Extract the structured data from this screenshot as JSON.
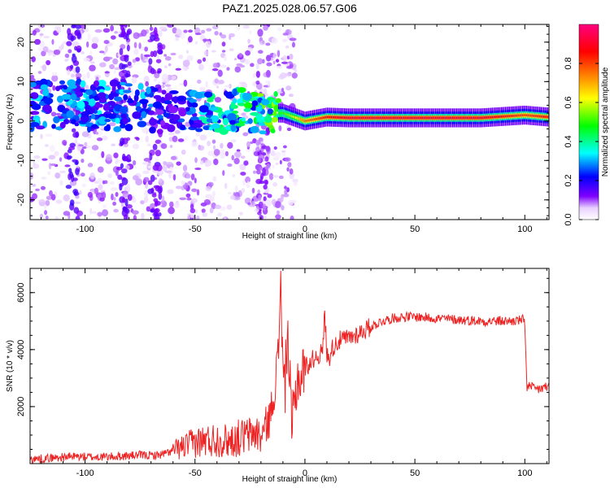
{
  "figure": {
    "title": "PAZ1.2025.028.06.57.G06"
  },
  "chart_data": [
    {
      "type": "heatmap",
      "title": "PAZ1.2025.028.06.57.G06",
      "xlabel": "Height of straight line (km)",
      "ylabel": "Frequency (Hz)",
      "xlim": [
        -125,
        111
      ],
      "ylim": [
        -25,
        24.5
      ],
      "xticks": [
        -100,
        -50,
        0,
        50,
        100
      ],
      "xticklabels": [
        "-100",
        "-50",
        "0",
        "50",
        "100"
      ],
      "yticks": [
        -20,
        -10,
        0,
        10,
        20
      ],
      "yticklabels": [
        "-20",
        "-10",
        "0",
        "10",
        "20"
      ],
      "grid": false,
      "colorbar": {
        "label": "Normalized spectral amplitude",
        "range": [
          0,
          1
        ],
        "ticks": [
          0.0,
          0.2,
          0.4,
          0.6,
          0.8
        ],
        "ticklabels": [
          "0.0",
          "0.2",
          "0.4",
          "0.6",
          "0.8"
        ],
        "colormap": [
          "#ffffff",
          "#7f00ff",
          "#0000ff",
          "#00ffff",
          "#00ff00",
          "#ffff00",
          "#ff8000",
          "#ff0000",
          "#ff00ff"
        ]
      },
      "ridge": {
        "x": [
          -125,
          -100,
          -75,
          -60,
          -50,
          -40,
          -30,
          -20,
          -10,
          -5,
          0,
          10,
          20,
          40,
          60,
          80,
          100,
          111
        ],
        "frequency_hz": [
          4,
          4,
          3.5,
          3,
          2.5,
          1.5,
          3,
          2,
          2,
          1,
          0,
          1,
          0.8,
          0.8,
          0.8,
          0.8,
          1.5,
          1
        ],
        "amplitude": [
          0.3,
          0.3,
          0.3,
          0.2,
          0.3,
          0.4,
          0.4,
          0.5,
          0.5,
          0.6,
          0.75,
          0.85,
          0.9,
          0.9,
          0.9,
          0.9,
          0.8,
          0.85
        ]
      },
      "noise_region_x": [
        -125,
        -65
      ],
      "cluster_region_x": [
        -65,
        -12
      ],
      "coherent_region_x": [
        -12,
        111
      ]
    },
    {
      "type": "line",
      "xlabel": "Height of straight line (km)",
      "ylabel": "SNR (10 * v/v)",
      "xlim": [
        -125,
        111
      ],
      "ylim": [
        0,
        6850
      ],
      "xticks": [
        -100,
        -50,
        0,
        50,
        100
      ],
      "xticklabels": [
        "-100",
        "-50",
        "0",
        "50",
        "100"
      ],
      "yticks": [
        2000,
        4000,
        6000
      ],
      "yticklabels": [
        "2000",
        "4000",
        "6000"
      ],
      "grid": false,
      "color": "#ee2222",
      "series": [
        {
          "x": [
            -125,
            -115,
            -105,
            -95,
            -85,
            -75,
            -70,
            -65,
            -60,
            -55,
            -50,
            -45,
            -40,
            -35,
            -30,
            -25,
            -22,
            -20,
            -18,
            -16,
            -14,
            -12,
            -11,
            -10,
            -9,
            -8,
            -7,
            -6,
            -5,
            -4,
            -3,
            -2,
            -1,
            0,
            2,
            4,
            6,
            8,
            9,
            10,
            11,
            12,
            15,
            20,
            25,
            30,
            35,
            40,
            45,
            50,
            60,
            70,
            80,
            90,
            95,
            99,
            100,
            101,
            105,
            111
          ],
          "values": [
            150,
            200,
            250,
            230,
            250,
            300,
            280,
            320,
            450,
            600,
            750,
            800,
            850,
            800,
            900,
            1000,
            1100,
            900,
            1300,
            1600,
            2500,
            4000,
            6800,
            3000,
            2800,
            4700,
            3000,
            1200,
            1800,
            2600,
            3200,
            2800,
            3300,
            3400,
            3500,
            3700,
            3800,
            3900,
            5300,
            3800,
            3700,
            4000,
            4300,
            4400,
            4600,
            4800,
            5000,
            5100,
            5150,
            5150,
            5100,
            5050,
            5000,
            5000,
            5000,
            5050,
            4950,
            2700,
            2600,
            2700
          ]
        }
      ]
    }
  ]
}
